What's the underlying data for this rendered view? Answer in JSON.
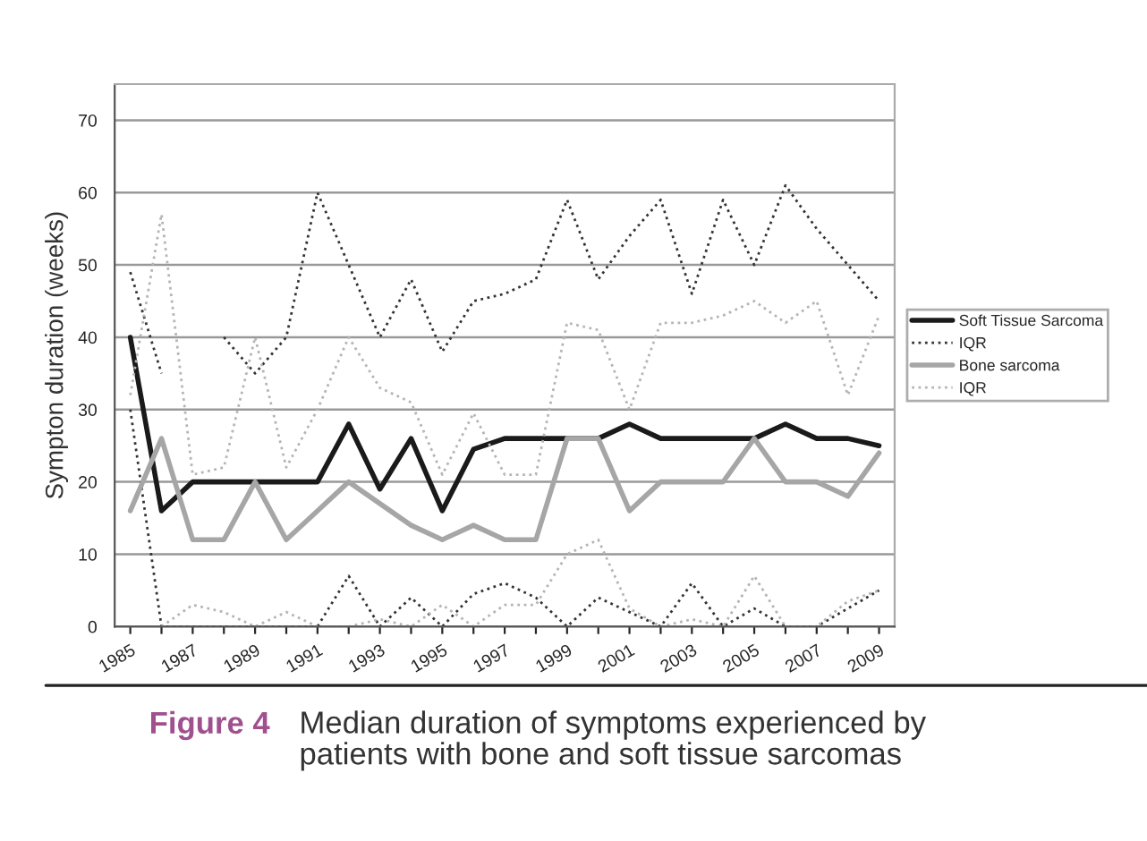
{
  "chart_data": {
    "type": "line",
    "ylabel": "Sympton duration (weeks)",
    "categories": [
      "1985",
      null,
      "1987",
      null,
      "1989",
      null,
      "1991",
      null,
      "1993",
      null,
      "1995",
      null,
      "1997",
      null,
      "1999",
      null,
      "2001",
      null,
      "2003",
      null,
      "2005",
      null,
      "2007",
      null,
      "2009"
    ],
    "series": [
      {
        "name": "Soft Tissue Sarcoma",
        "color": "#1a1a1a",
        "line_style": "solid",
        "values": [
          40,
          16,
          20,
          20,
          20,
          20,
          20,
          28,
          19,
          26,
          16,
          24.5,
          26,
          26,
          26,
          26,
          28,
          26,
          26,
          26,
          26,
          28,
          26,
          26,
          25
        ]
      },
      {
        "name": "IQR",
        "color": "#333333",
        "line_style": "dotted",
        "values": [
          49,
          35,
          null,
          40,
          35,
          40,
          60,
          50,
          40,
          48,
          38,
          45,
          46,
          48,
          59,
          48,
          54,
          59,
          46,
          59,
          50,
          61,
          55,
          50,
          45
        ]
      },
      {
        "color": "#333333",
        "line_style": "dotted",
        "values": [
          30,
          0,
          0,
          0,
          0,
          0,
          0,
          7,
          0,
          4,
          0,
          4.5,
          6,
          4,
          0,
          4,
          2,
          0,
          6,
          0,
          2.5,
          0,
          0,
          2.5,
          5
        ]
      },
      {
        "name": "Bone sarcoma",
        "color": "#a6a6a6",
        "line_style": "solid",
        "values": [
          16,
          26,
          12,
          12,
          20,
          12,
          16,
          20,
          17,
          14,
          12,
          14,
          12,
          12,
          26,
          26,
          16,
          20,
          20,
          20,
          26,
          20,
          20,
          18,
          24
        ]
      },
      {
        "name": "IQR",
        "color": "#b5b5b5",
        "line_style": "dotted",
        "values": [
          32,
          57,
          21,
          22,
          40,
          22,
          30,
          40,
          33,
          31,
          21,
          29.5,
          21,
          21,
          42,
          41,
          30,
          42,
          42,
          43,
          45,
          42,
          45,
          32,
          43
        ]
      },
      {
        "color": "#b5b5b5",
        "line_style": "dotted",
        "values": [
          null,
          0,
          3,
          2,
          0,
          2,
          0,
          0,
          1,
          0,
          3,
          0,
          3,
          3,
          10,
          12,
          2.5,
          0,
          1,
          0,
          7,
          0,
          0,
          3.5,
          5
        ]
      }
    ],
    "ylim": [
      0,
      75
    ],
    "yticks": [
      0,
      10,
      20,
      30,
      40,
      50,
      60,
      70
    ],
    "grid": "y",
    "legend": "right",
    "annotations": [
      "Figure 4",
      "Median duration of symptoms experienced by\npatients with bone and soft tissue sarcomas"
    ]
  }
}
